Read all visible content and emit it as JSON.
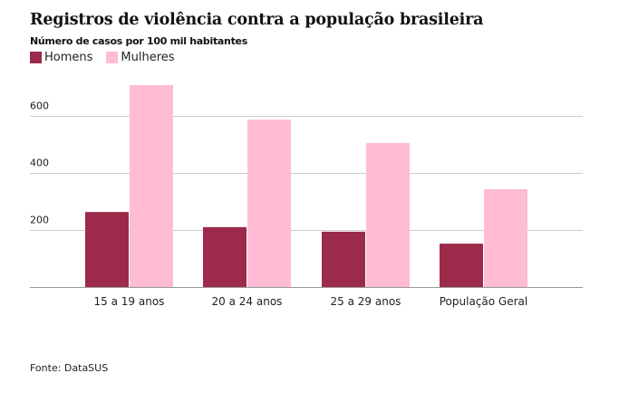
{
  "chart_data": {
    "type": "bar",
    "title": "Registros de violência contra a população brasileira",
    "subtitle": "Número de casos por 100 mil habitantes",
    "xlabel": "",
    "ylabel": "",
    "categories": [
      "15 a 19 anos",
      "20 a 24 anos",
      "25 a 29 anos",
      "População Geral"
    ],
    "series": [
      {
        "name": "Homens",
        "color": "#9c2a4a",
        "values": [
          263,
          210,
          194,
          152
        ]
      },
      {
        "name": "Mulheres",
        "color": "#ffbcd4",
        "values": [
          708,
          587,
          505,
          343
        ]
      }
    ],
    "ylim": [
      0,
      720
    ],
    "yticks": [
      200,
      400,
      600
    ],
    "grid": true,
    "legend_position": "top-left",
    "source": "Fonte: DataSUS"
  }
}
